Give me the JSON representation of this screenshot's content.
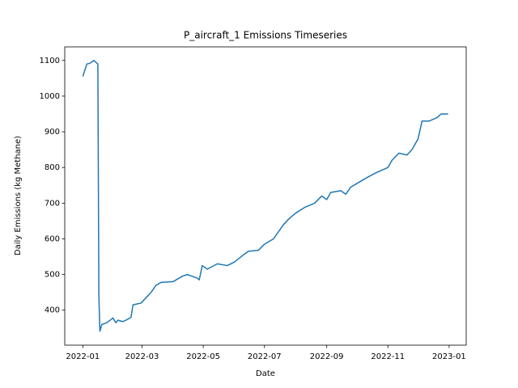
{
  "chart_data": {
    "type": "line",
    "title": "P_aircraft_1 Emissions Timeseries",
    "x_label": "Date",
    "y_label": "Daily Emissions (kg Methane)",
    "x": [
      "2022-01-01",
      "2022-01-05",
      "2022-01-08",
      "2022-01-12",
      "2022-01-16",
      "2022-01-17",
      "2022-01-18",
      "2022-01-20",
      "2022-01-25",
      "2022-01-31",
      "2022-02-03",
      "2022-02-05",
      "2022-02-10",
      "2022-02-15",
      "2022-02-18",
      "2022-02-20",
      "2022-02-28",
      "2022-03-05",
      "2022-03-10",
      "2022-03-15",
      "2022-03-20",
      "2022-04-01",
      "2022-04-10",
      "2022-04-15",
      "2022-04-20",
      "2022-04-25",
      "2022-04-27",
      "2022-04-30",
      "2022-05-05",
      "2022-05-15",
      "2022-05-25",
      "2022-06-01",
      "2022-06-10",
      "2022-06-15",
      "2022-06-25",
      "2022-07-01",
      "2022-07-10",
      "2022-07-20",
      "2022-07-25",
      "2022-08-01",
      "2022-08-10",
      "2022-08-20",
      "2022-08-27",
      "2022-09-01",
      "2022-09-05",
      "2022-09-15",
      "2022-09-20",
      "2022-09-25",
      "2022-10-01",
      "2022-10-10",
      "2022-10-20",
      "2022-11-01",
      "2022-11-05",
      "2022-11-12",
      "2022-11-20",
      "2022-11-25",
      "2022-12-01",
      "2022-12-05",
      "2022-12-12",
      "2022-12-20",
      "2022-12-24",
      "2022-12-31"
    ],
    "series": [
      {
        "name": "P_aircraft_1",
        "color": "#1f77b4",
        "values": [
          1055,
          1090,
          1092,
          1100,
          1090,
          440,
          341,
          360,
          365,
          378,
          365,
          372,
          368,
          375,
          380,
          415,
          420,
          435,
          450,
          470,
          478,
          480,
          495,
          500,
          495,
          490,
          485,
          525,
          515,
          530,
          525,
          535,
          555,
          565,
          568,
          585,
          600,
          640,
          655,
          672,
          688,
          700,
          720,
          710,
          730,
          735,
          725,
          745,
          755,
          770,
          785,
          800,
          820,
          840,
          835,
          850,
          880,
          930,
          930,
          940,
          950,
          950
        ]
      }
    ],
    "xlim": [
      "2021-12-14",
      "2023-01-18"
    ],
    "ylim": [
      302,
      1138
    ],
    "xticks": [
      {
        "value": "2022-01-01",
        "label": "2022-01"
      },
      {
        "value": "2022-03-01",
        "label": "2022-03"
      },
      {
        "value": "2022-05-01",
        "label": "2022-05"
      },
      {
        "value": "2022-07-01",
        "label": "2022-07"
      },
      {
        "value": "2022-09-01",
        "label": "2022-09"
      },
      {
        "value": "2022-11-01",
        "label": "2022-11"
      },
      {
        "value": "2023-01-01",
        "label": "2023-01"
      }
    ],
    "yticks": [
      400,
      500,
      600,
      700,
      800,
      900,
      1000,
      1100
    ],
    "grid": false
  }
}
